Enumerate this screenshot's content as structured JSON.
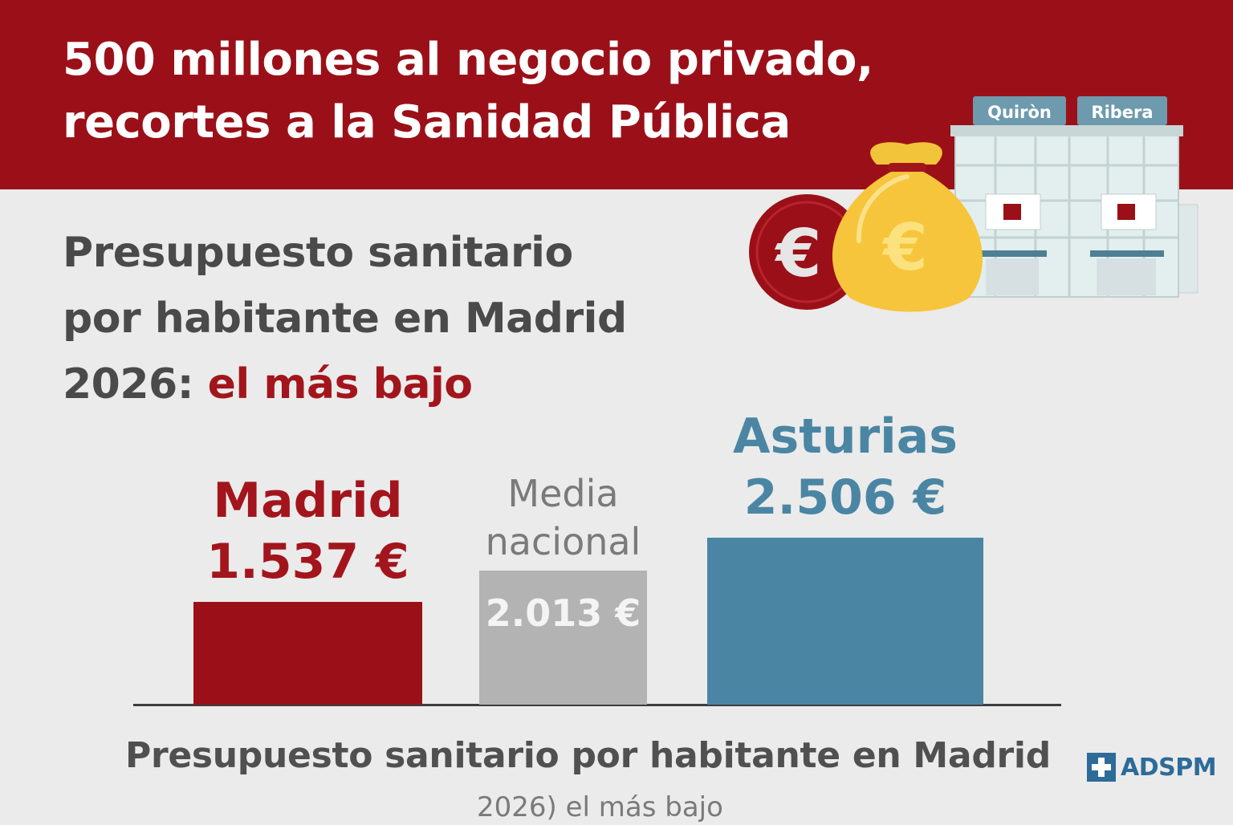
{
  "banner": {
    "line1": "500 millones al negocio privado,",
    "line2": "recortes a la Sanidad Pública"
  },
  "subtitle": {
    "line1": "Presupuesto sanitario",
    "line2": "por habitante en Madrid",
    "line3_prefix": "2026:",
    "line3_accent": "el más bajo"
  },
  "illustration": {
    "signs": [
      "Quiròn",
      "Ribera"
    ],
    "coin_symbol": "€",
    "bag_symbol": "€",
    "icons": [
      "euro-coin-icon",
      "money-bag-icon",
      "hospital-building-icon"
    ]
  },
  "chart_data": {
    "type": "bar",
    "categories": [
      "Madrid",
      "Media nacional",
      "Asturias"
    ],
    "values": [
      1537,
      2013,
      2506
    ],
    "value_labels": [
      "1.537 €",
      "2.013 €",
      "2.506 €"
    ],
    "label_lines": [
      [
        "Madrid"
      ],
      [
        "Media",
        "nacional"
      ],
      [
        "Asturias"
      ]
    ],
    "colors": [
      "#9b1018",
      "#b3b3b3",
      "#4a86a3"
    ],
    "label_colors": [
      "#a3151c",
      "#7a7a7a",
      "#4a86a3"
    ],
    "ylim": [
      0,
      2600
    ]
  },
  "footer": {
    "title": "Presupuesto sanitario por habitante en Madrid",
    "subtitle": "2026) el más bajo"
  },
  "logo": {
    "text": "ADSPM"
  },
  "colors": {
    "banner": "#9b1018",
    "accent": "#a3151c",
    "background": "#ebebeb",
    "logo": "#2d6b99"
  }
}
